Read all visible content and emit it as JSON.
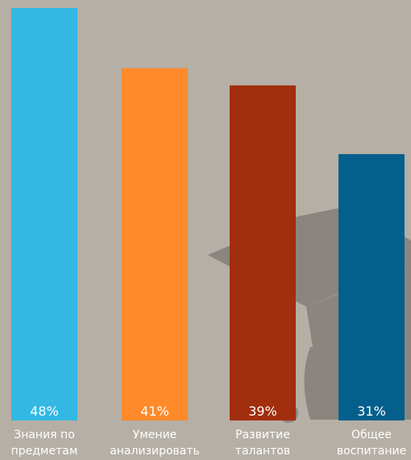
{
  "chart_data": {
    "type": "bar",
    "categories": [
      [
        "Знания по",
        "предметам"
      ],
      [
        "Умение",
        "анализировать"
      ],
      [
        "Развитие",
        "талантов"
      ],
      [
        "Общее",
        "воспитание"
      ]
    ],
    "values": [
      48,
      41,
      39,
      31
    ],
    "value_labels": [
      "48%",
      "41%",
      "39%",
      "31%"
    ],
    "colors": [
      "#33b8e4",
      "#ff8a2b",
      "#a12e0c",
      "#045f8c"
    ],
    "title": "",
    "xlabel": "",
    "ylabel": "",
    "ylim": [
      0,
      48
    ],
    "grid": false,
    "legend": "none"
  },
  "background": {
    "color": "#b6afa5",
    "graphic": "graduation-cap-icon",
    "graphic_color": "#8b8580"
  }
}
